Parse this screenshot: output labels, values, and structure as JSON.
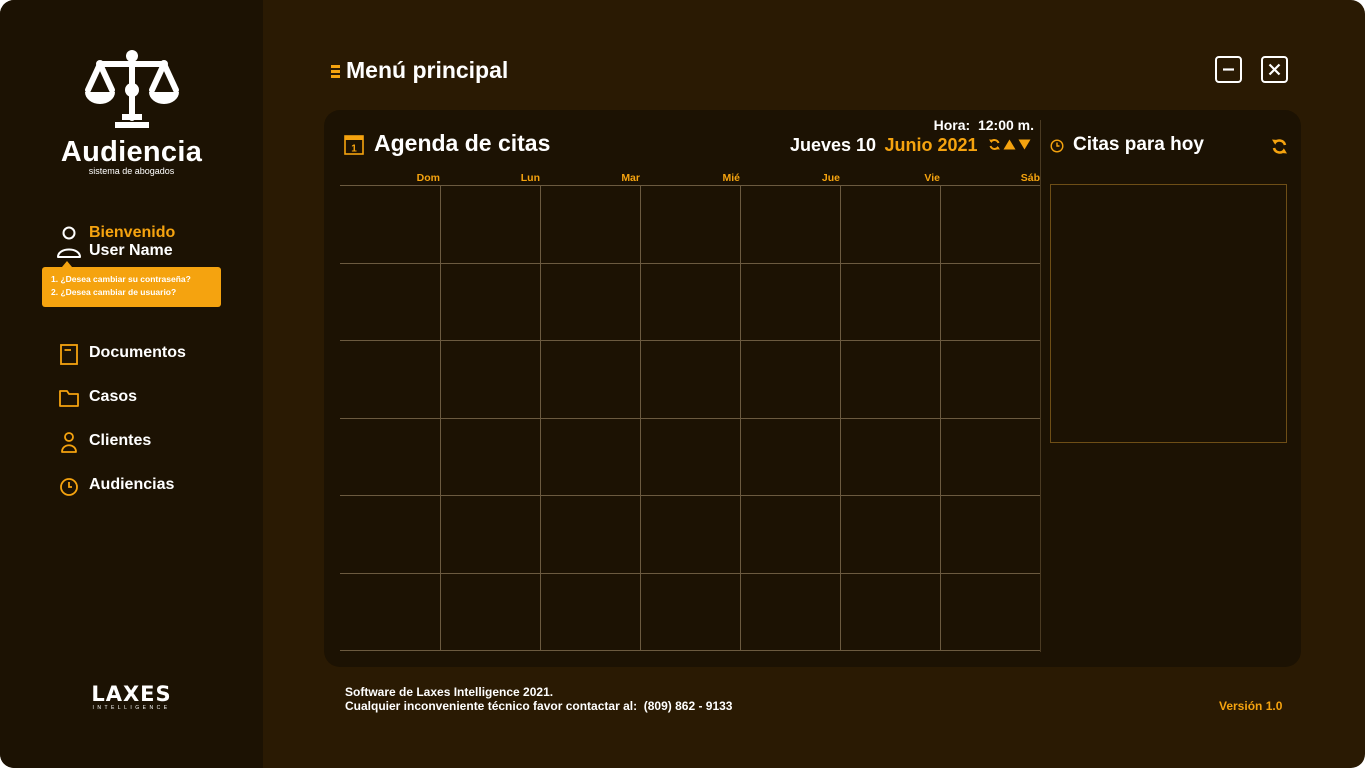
{
  "app": {
    "brand_name": "Audiencia",
    "brand_subtitle": "sistema de abogados",
    "logo_icon": "scales-of-justice-icon"
  },
  "user": {
    "welcome": "Bienvenido",
    "name": "User Name",
    "options": [
      "1. ¿Desea cambiar su contraseña?",
      "2. ¿Desea cambiar de usuario?"
    ]
  },
  "sidebar": {
    "items": [
      {
        "label": "Documentos",
        "icon": "document-icon"
      },
      {
        "label": "Casos",
        "icon": "folder-icon"
      },
      {
        "label": "Clientes",
        "icon": "user-icon"
      },
      {
        "label": "Audiencias",
        "icon": "clock-icon"
      }
    ],
    "vendor_logo": "LAXES",
    "vendor_logo_sub": "INTELLIGENCE"
  },
  "header": {
    "title": "Menú principal",
    "minimize_icon": "minimize-icon",
    "close_icon": "close-icon"
  },
  "calendar": {
    "title": "Agenda de citas",
    "time_label": "Hora:",
    "time_value": "12:00 m.",
    "day": "Jueves 10",
    "month_year": "Junio 2021",
    "weekdays": [
      "Dom",
      "Lun",
      "Mar",
      "Mié",
      "Jue",
      "Vie",
      "Sáb"
    ],
    "weeks": 6
  },
  "today": {
    "title": "Citas para hoy"
  },
  "footer": {
    "line1": "Software de Laxes Intelligence 2021.",
    "line2_label": "Cualquier inconveniente técnico favor contactar al:",
    "phone": "(809) 862 - 9133",
    "version": "Versión 1.0"
  },
  "colors": {
    "accent": "#f5a30f",
    "background": "#2a1a03",
    "sidebar": "#1c1203",
    "panel": "#1c1203"
  }
}
